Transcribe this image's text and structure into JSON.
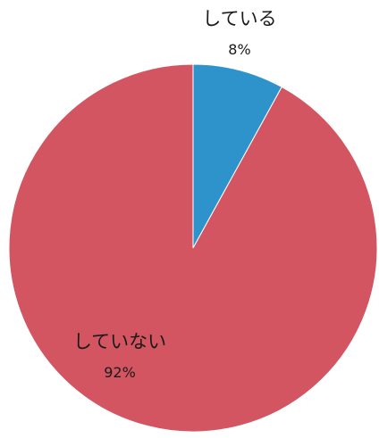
{
  "chart_data": {
    "type": "pie",
    "slices": [
      {
        "label": "している",
        "value": 8,
        "percent_label": "8%",
        "color": "#2e93cb"
      },
      {
        "label": "していない",
        "value": 92,
        "percent_label": "92%",
        "color": "#d35561"
      }
    ],
    "start_angle_deg": 0,
    "direction": "clockwise",
    "legend": "none",
    "labels_inline": true
  }
}
